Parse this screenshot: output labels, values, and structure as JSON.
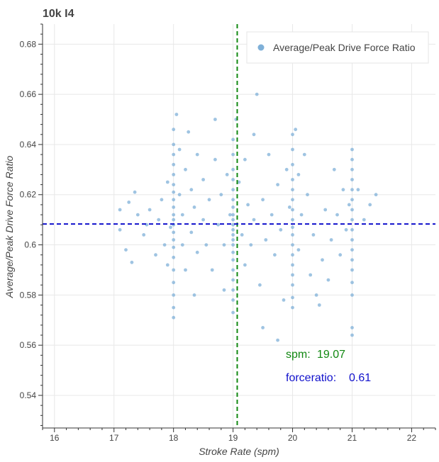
{
  "chart_data": {
    "type": "scatter",
    "title": "10k I4",
    "xlabel": "Stroke Rate (spm)",
    "ylabel": "Average/Peak Drive Force Ratio",
    "xlim": [
      15.8,
      22.4
    ],
    "ylim": [
      0.527,
      0.688
    ],
    "x_ticks": [
      16,
      17,
      18,
      19,
      20,
      21,
      22
    ],
    "y_ticks": [
      0.54,
      0.56,
      0.58,
      0.6,
      0.62,
      0.64,
      0.66,
      0.68
    ],
    "x_tick_labels": [
      "16",
      "17",
      "18",
      "19",
      "20",
      "21",
      "22"
    ],
    "y_tick_labels": [
      "0.54",
      "0.56",
      "0.58",
      "0.6",
      "0.62",
      "0.64",
      "0.66",
      "0.68"
    ],
    "grid": true,
    "legend": {
      "position": "top-right",
      "entries": [
        "Average/Peak Drive Force Ratio"
      ]
    },
    "series": [
      {
        "name": "Average/Peak Drive Force Ratio",
        "color": "#7fb0d8",
        "points": [
          [
            17.1,
            0.614
          ],
          [
            17.1,
            0.606
          ],
          [
            17.2,
            0.598
          ],
          [
            17.25,
            0.617
          ],
          [
            17.3,
            0.593
          ],
          [
            17.35,
            0.621
          ],
          [
            17.4,
            0.612
          ],
          [
            17.5,
            0.604
          ],
          [
            17.55,
            0.608
          ],
          [
            17.6,
            0.614
          ],
          [
            17.7,
            0.596
          ],
          [
            17.75,
            0.61
          ],
          [
            17.8,
            0.618
          ],
          [
            17.85,
            0.6
          ],
          [
            17.9,
            0.625
          ],
          [
            17.9,
            0.592
          ],
          [
            17.95,
            0.607
          ],
          [
            18.0,
            0.646
          ],
          [
            18.0,
            0.64
          ],
          [
            18.0,
            0.636
          ],
          [
            18.0,
            0.632
          ],
          [
            18.0,
            0.628
          ],
          [
            18.0,
            0.624
          ],
          [
            18.0,
            0.621
          ],
          [
            18.0,
            0.618
          ],
          [
            18.0,
            0.615
          ],
          [
            18.0,
            0.612
          ],
          [
            18.0,
            0.61
          ],
          [
            18.0,
            0.608
          ],
          [
            18.0,
            0.605
          ],
          [
            18.0,
            0.602
          ],
          [
            18.0,
            0.599
          ],
          [
            18.0,
            0.595
          ],
          [
            18.0,
            0.59
          ],
          [
            18.0,
            0.585
          ],
          [
            18.0,
            0.58
          ],
          [
            18.0,
            0.575
          ],
          [
            18.0,
            0.571
          ],
          [
            18.05,
            0.652
          ],
          [
            18.1,
            0.638
          ],
          [
            18.1,
            0.62
          ],
          [
            18.15,
            0.6
          ],
          [
            18.15,
            0.612
          ],
          [
            18.2,
            0.63
          ],
          [
            18.2,
            0.59
          ],
          [
            18.25,
            0.645
          ],
          [
            18.3,
            0.622
          ],
          [
            18.3,
            0.605
          ],
          [
            18.35,
            0.615
          ],
          [
            18.35,
            0.58
          ],
          [
            18.4,
            0.636
          ],
          [
            18.4,
            0.597
          ],
          [
            18.5,
            0.626
          ],
          [
            18.5,
            0.61
          ],
          [
            18.55,
            0.6
          ],
          [
            18.6,
            0.618
          ],
          [
            18.65,
            0.59
          ],
          [
            18.7,
            0.65
          ],
          [
            18.7,
            0.634
          ],
          [
            18.75,
            0.608
          ],
          [
            18.8,
            0.62
          ],
          [
            18.85,
            0.6
          ],
          [
            18.85,
            0.582
          ],
          [
            18.9,
            0.628
          ],
          [
            18.95,
            0.612
          ],
          [
            19.0,
            0.642
          ],
          [
            19.0,
            0.636
          ],
          [
            19.0,
            0.63
          ],
          [
            19.0,
            0.626
          ],
          [
            19.0,
            0.622
          ],
          [
            19.0,
            0.618
          ],
          [
            19.0,
            0.615
          ],
          [
            19.0,
            0.612
          ],
          [
            19.0,
            0.61
          ],
          [
            19.0,
            0.608
          ],
          [
            19.0,
            0.606
          ],
          [
            19.0,
            0.604
          ],
          [
            19.0,
            0.602
          ],
          [
            19.0,
            0.6
          ],
          [
            19.0,
            0.597
          ],
          [
            19.0,
            0.594
          ],
          [
            19.0,
            0.59
          ],
          [
            19.0,
            0.586
          ],
          [
            19.0,
            0.582
          ],
          [
            19.0,
            0.578
          ],
          [
            19.0,
            0.573
          ],
          [
            19.05,
            0.65
          ],
          [
            19.1,
            0.625
          ],
          [
            19.15,
            0.604
          ],
          [
            19.2,
            0.634
          ],
          [
            19.2,
            0.592
          ],
          [
            19.25,
            0.616
          ],
          [
            19.3,
            0.6
          ],
          [
            19.35,
            0.644
          ],
          [
            19.35,
            0.61
          ],
          [
            19.4,
            0.66
          ],
          [
            19.45,
            0.584
          ],
          [
            19.5,
            0.618
          ],
          [
            19.5,
            0.567
          ],
          [
            19.55,
            0.602
          ],
          [
            19.6,
            0.636
          ],
          [
            19.65,
            0.612
          ],
          [
            19.7,
            0.596
          ],
          [
            19.75,
            0.624
          ],
          [
            19.75,
            0.562
          ],
          [
            19.8,
            0.606
          ],
          [
            19.85,
            0.578
          ],
          [
            19.9,
            0.63
          ],
          [
            19.95,
            0.615
          ],
          [
            20.0,
            0.644
          ],
          [
            20.0,
            0.638
          ],
          [
            20.0,
            0.632
          ],
          [
            20.0,
            0.626
          ],
          [
            20.0,
            0.622
          ],
          [
            20.0,
            0.618
          ],
          [
            20.0,
            0.614
          ],
          [
            20.0,
            0.61
          ],
          [
            20.0,
            0.607
          ],
          [
            20.0,
            0.604
          ],
          [
            20.0,
            0.6
          ],
          [
            20.0,
            0.596
          ],
          [
            20.0,
            0.592
          ],
          [
            20.0,
            0.588
          ],
          [
            20.0,
            0.584
          ],
          [
            20.0,
            0.579
          ],
          [
            20.0,
            0.575
          ],
          [
            20.05,
            0.646
          ],
          [
            20.1,
            0.628
          ],
          [
            20.1,
            0.598
          ],
          [
            20.15,
            0.612
          ],
          [
            20.2,
            0.636
          ],
          [
            20.25,
            0.62
          ],
          [
            20.3,
            0.588
          ],
          [
            20.35,
            0.604
          ],
          [
            20.4,
            0.58
          ],
          [
            20.45,
            0.576
          ],
          [
            20.5,
            0.594
          ],
          [
            20.55,
            0.614
          ],
          [
            20.6,
            0.586
          ],
          [
            20.65,
            0.602
          ],
          [
            20.7,
            0.63
          ],
          [
            20.75,
            0.612
          ],
          [
            20.8,
            0.596
          ],
          [
            20.85,
            0.622
          ],
          [
            20.9,
            0.606
          ],
          [
            20.95,
            0.616
          ],
          [
            21.0,
            0.638
          ],
          [
            21.0,
            0.634
          ],
          [
            21.0,
            0.63
          ],
          [
            21.0,
            0.626
          ],
          [
            21.0,
            0.622
          ],
          [
            21.0,
            0.618
          ],
          [
            21.0,
            0.614
          ],
          [
            21.0,
            0.61
          ],
          [
            21.0,
            0.606
          ],
          [
            21.0,
            0.602
          ],
          [
            21.0,
            0.598
          ],
          [
            21.0,
            0.594
          ],
          [
            21.0,
            0.59
          ],
          [
            21.0,
            0.585
          ],
          [
            21.0,
            0.58
          ],
          [
            21.0,
            0.567
          ],
          [
            21.0,
            0.564
          ],
          [
            21.1,
            0.622
          ],
          [
            21.2,
            0.61
          ],
          [
            21.3,
            0.616
          ],
          [
            21.4,
            0.62
          ]
        ]
      }
    ],
    "reference_lines": {
      "vertical": {
        "value": 19.07,
        "color": "#118811",
        "style": "dashed"
      },
      "horizontal": {
        "value": 0.6083,
        "color": "#1111cc",
        "style": "dashed"
      }
    },
    "annotations": [
      {
        "label": "spm:",
        "value": "19.07",
        "color": "#118811"
      },
      {
        "label": "forceratio:",
        "value": "0.61",
        "color": "#1111cc"
      }
    ]
  }
}
